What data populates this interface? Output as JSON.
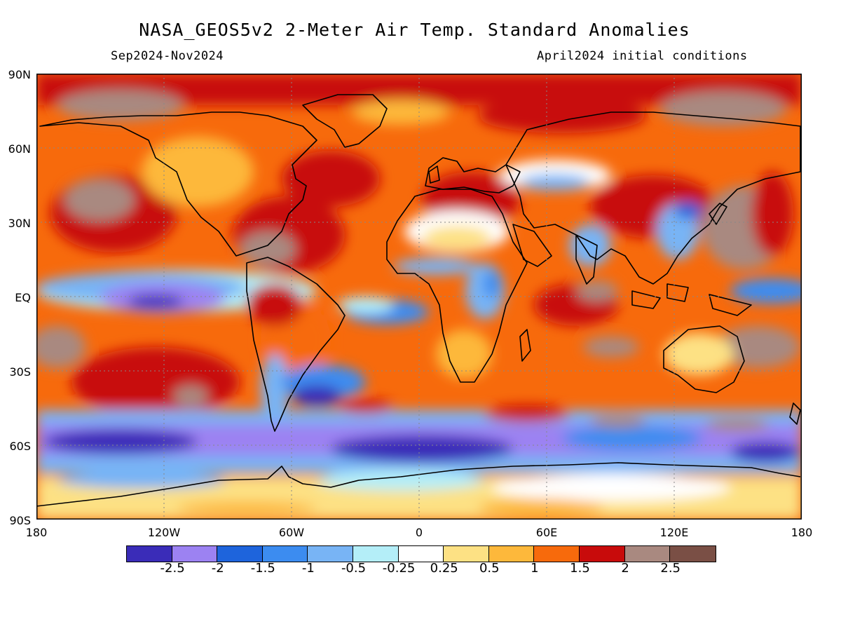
{
  "title": "NASA_GEOS5v2 2-Meter Air Temp. Standard Anomalies",
  "subtitle_left": "Sep2024-Nov2024",
  "subtitle_right": "April2024 initial conditions",
  "lat_labels": [
    "90N",
    "60N",
    "30N",
    "EQ",
    "30S",
    "60S",
    "90S"
  ],
  "lon_labels": [
    "180",
    "120W",
    "60W",
    "0",
    "60E",
    "120E",
    "180"
  ],
  "colorbar": {
    "colors": [
      "#3a2cb8",
      "#9c82f2",
      "#1e64dc",
      "#3c8cf0",
      "#78b4f5",
      "#b4eef8",
      "#ffffff",
      "#fde184",
      "#fdb83b",
      "#f76a0c",
      "#c80b0b",
      "#a98980",
      "#7a4f45"
    ],
    "labels": [
      "-2.5",
      "-2",
      "-1.5",
      "-1",
      "-0.5",
      "-0.25",
      "0.25",
      "0.5",
      "1",
      "1.5",
      "2",
      "2.5"
    ]
  }
}
